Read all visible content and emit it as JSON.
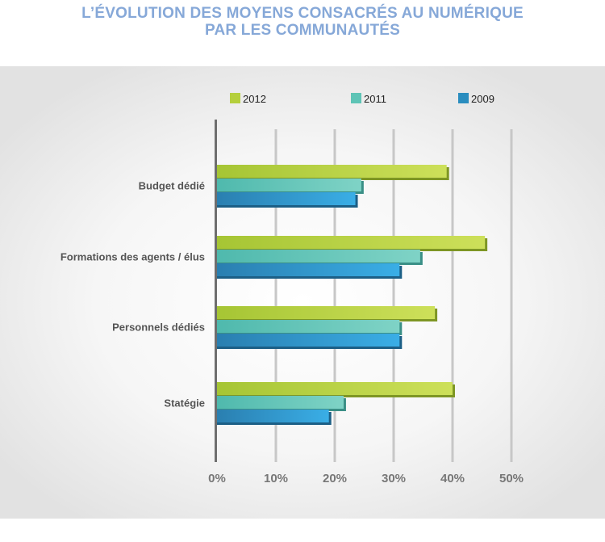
{
  "title_line1": "L’ÉVOLUTION DES MOYENS CONSACRÉS AU NUMÉRIQUE",
  "title_line2": "PAR LES COMMUNAUTÉS",
  "chart_data": {
    "type": "bar",
    "orientation": "horizontal",
    "title": "L’ÉVOLUTION DES MOYENS CONSACRÉS AU NUMÉRIQUE PAR LES COMMUNAUTÉS",
    "categories": [
      "Budget dédié",
      "Formations des agents / élus",
      "Personnels dédiés",
      "Statégie"
    ],
    "series": [
      {
        "name": "2012",
        "values": [
          39,
          45.5,
          37,
          40
        ],
        "color": "#b5cf3c"
      },
      {
        "name": "2011",
        "values": [
          24.5,
          34.5,
          31,
          21.5
        ],
        "color": "#5ec4b6"
      },
      {
        "name": "2009",
        "values": [
          23.5,
          31,
          31,
          19
        ],
        "color": "#2a8dbf"
      }
    ],
    "xlim": [
      0,
      50
    ],
    "x_ticks": [
      "0%",
      "10%",
      "20%",
      "30%",
      "40%",
      "50%"
    ],
    "grid": true,
    "legend_position": "top"
  }
}
